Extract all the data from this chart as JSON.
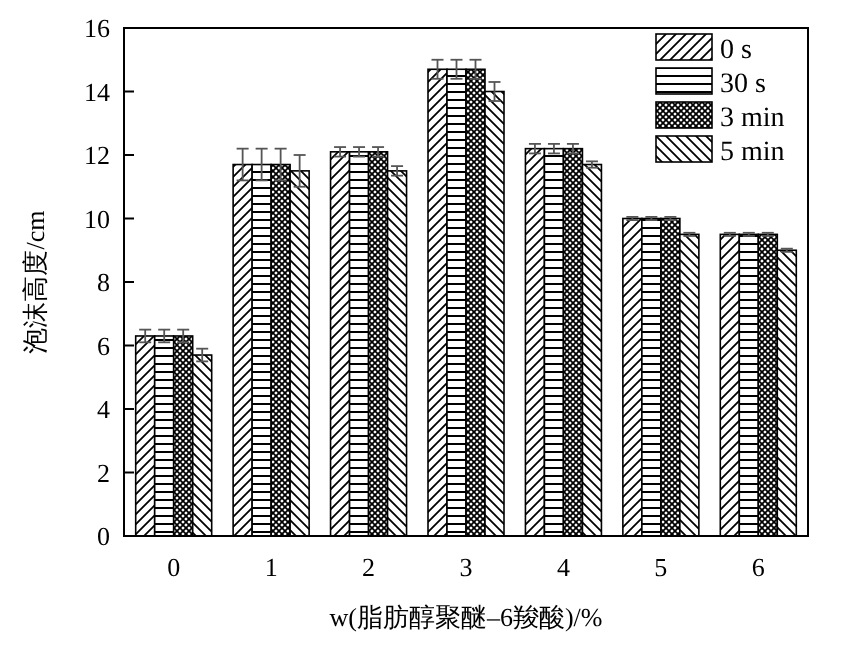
{
  "chart_data": {
    "type": "bar",
    "xlabel": "w(脂肪醇聚醚–6羧酸)/%",
    "ylabel": "泡沫高度/cm",
    "categories": [
      "0",
      "1",
      "2",
      "3",
      "4",
      "5",
      "6"
    ],
    "series": [
      {
        "name": "0 s",
        "color": "#000000",
        "values": [
          6.3,
          11.7,
          12.1,
          14.7,
          12.2,
          10.0,
          9.5
        ],
        "errors": [
          0.2,
          0.5,
          0.15,
          0.3,
          0.15,
          0.05,
          0.05
        ]
      },
      {
        "name": "30 s",
        "color": "#000000",
        "values": [
          6.3,
          11.7,
          12.1,
          14.7,
          12.2,
          10.0,
          9.5
        ],
        "errors": [
          0.2,
          0.5,
          0.15,
          0.3,
          0.15,
          0.05,
          0.05
        ]
      },
      {
        "name": "3 min",
        "color": "#000000",
        "values": [
          6.3,
          11.7,
          12.1,
          14.7,
          12.2,
          10.0,
          9.5
        ],
        "errors": [
          0.2,
          0.5,
          0.15,
          0.3,
          0.15,
          0.05,
          0.05
        ]
      },
      {
        "name": "5 min",
        "color": "#000000",
        "values": [
          5.7,
          11.5,
          11.5,
          14.0,
          11.7,
          9.5,
          9.0
        ],
        "errors": [
          0.2,
          0.5,
          0.15,
          0.3,
          0.1,
          0.05,
          0.05
        ]
      }
    ],
    "ylim": [
      0,
      16
    ],
    "yticks": [
      0,
      2,
      4,
      6,
      8,
      10,
      12,
      14,
      16
    ],
    "legend": "top right",
    "grid": false
  }
}
